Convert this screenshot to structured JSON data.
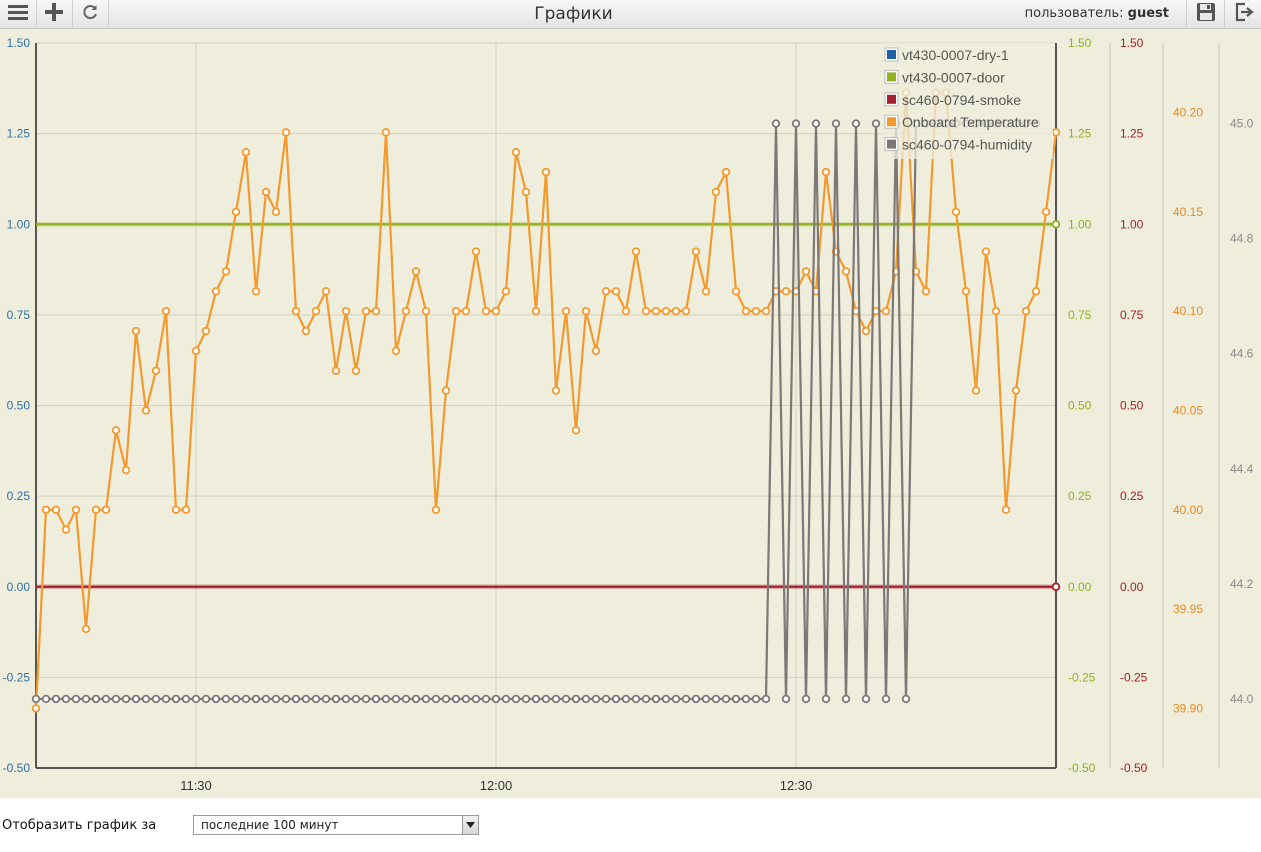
{
  "header": {
    "title": "Графики",
    "user_label": "пользователь:",
    "user_name": "guest"
  },
  "toolbar": {
    "menu_icon": "hamburger-menu-icon",
    "add_icon": "plus-icon",
    "refresh_icon": "refresh-icon",
    "save_icon": "floppy-disk-icon",
    "logout_icon": "logout-icon"
  },
  "period": {
    "label": "Отобразить график за",
    "selected": "последние 100 минут"
  },
  "chart_data": {
    "type": "line",
    "x_ticks": [
      "11:30",
      "12:00",
      "12:30"
    ],
    "axes": [
      {
        "id": "y1",
        "color": "#2f6fa5",
        "side": "left",
        "range": [
          -0.5,
          1.5
        ],
        "ticks": [
          "-0.50",
          "-0.25",
          "0.00",
          "0.25",
          "0.50",
          "0.75",
          "1.00",
          "1.25",
          "1.50"
        ]
      },
      {
        "id": "y2",
        "color": "#8fb021",
        "side": "right",
        "range": [
          -0.5,
          1.5
        ],
        "ticks": [
          "-0.50",
          "-0.25",
          "0.00",
          "0.25",
          "0.50",
          "0.75",
          "1.00",
          "1.25",
          "1.50"
        ]
      },
      {
        "id": "y3",
        "color": "#a4202e",
        "side": "right",
        "range": [
          -0.5,
          1.5
        ],
        "ticks": [
          "-0.50",
          "-0.25",
          "0.00",
          "0.25",
          "0.50",
          "0.75",
          "1.00",
          "1.25",
          "1.50"
        ]
      },
      {
        "id": "y4",
        "color": "#e8891e",
        "side": "right",
        "range": [
          39.87,
          40.235
        ],
        "ticks": [
          "39.90",
          "39.95",
          "40.00",
          "40.05",
          "40.10",
          "40.15",
          "40.20"
        ]
      },
      {
        "id": "y5",
        "color": "#8a8a8a",
        "side": "right",
        "range": [
          43.88,
          45.14
        ],
        "ticks": [
          "44.0",
          "44.2",
          "44.4",
          "44.6",
          "44.8",
          "45.0"
        ]
      }
    ],
    "legend": {
      "position": "top-right"
    },
    "grid": true,
    "series": [
      {
        "name": "vt430-0007-dry-1",
        "color": "#1f5fa6",
        "axis": "y1",
        "points": "none",
        "values": []
      },
      {
        "name": "vt430-0007-door",
        "color": "#8fb021",
        "axis": "y2",
        "points": "ends",
        "values": [
          1,
          1
        ]
      },
      {
        "name": "sc460-0794-smoke",
        "color": "#a4202e",
        "axis": "y3",
        "points": "ends",
        "values": [
          0,
          0
        ]
      },
      {
        "name": "Onboard Temperature",
        "color": "#f39a2f",
        "axis": "y4",
        "points": "all",
        "x_start": 0,
        "values": [
          39.9,
          40.0,
          40.0,
          39.99,
          40.0,
          39.94,
          40.0,
          40.0,
          40.04,
          40.02,
          40.09,
          40.05,
          40.07,
          40.1,
          40.0,
          40.0,
          40.08,
          40.09,
          40.11,
          40.12,
          40.15,
          40.18,
          40.11,
          40.16,
          40.15,
          40.19,
          40.1,
          40.09,
          40.1,
          40.11,
          40.07,
          40.1,
          40.07,
          40.1,
          40.1,
          40.19,
          40.08,
          40.1,
          40.12,
          40.1,
          40.0,
          40.06,
          40.1,
          40.1,
          40.13,
          40.1,
          40.1,
          40.11,
          40.18,
          40.16,
          40.1,
          40.17,
          40.06,
          40.1,
          40.04,
          40.1,
          40.08,
          40.11,
          40.11,
          40.1,
          40.13,
          40.1,
          40.1,
          40.1,
          40.1,
          40.1,
          40.13,
          40.11,
          40.16,
          40.17,
          40.11,
          40.1,
          40.1,
          40.1,
          40.11,
          40.11,
          40.11,
          40.12,
          40.11,
          40.17,
          40.13,
          40.12,
          40.1,
          40.09,
          40.1,
          40.1,
          40.12,
          40.21,
          40.12,
          40.11,
          40.21,
          40.21,
          40.15,
          40.11,
          40.06,
          40.13,
          40.1,
          40.0,
          40.06,
          40.1,
          40.11,
          40.15,
          40.19
        ]
      },
      {
        "name": "sc460-0794-humidity",
        "color": "#7d7776",
        "axis": "y5",
        "points": "all",
        "x_start": 0,
        "values": [
          44.0,
          44.0,
          44.0,
          44.0,
          44.0,
          44.0,
          44.0,
          44.0,
          44.0,
          44.0,
          44.0,
          44.0,
          44.0,
          44.0,
          44.0,
          44.0,
          44.0,
          44.0,
          44.0,
          44.0,
          44.0,
          44.0,
          44.0,
          44.0,
          44.0,
          44.0,
          44.0,
          44.0,
          44.0,
          44.0,
          44.0,
          44.0,
          44.0,
          44.0,
          44.0,
          44.0,
          44.0,
          44.0,
          44.0,
          44.0,
          44.0,
          44.0,
          44.0,
          44.0,
          44.0,
          44.0,
          44.0,
          44.0,
          44.0,
          44.0,
          44.0,
          44.0,
          44.0,
          44.0,
          44.0,
          44.0,
          44.0,
          44.0,
          44.0,
          44.0,
          44.0,
          44.0,
          44.0,
          44.0,
          44.0,
          44.0,
          44.0,
          44.0,
          44.0,
          44.0,
          44.0,
          44.0,
          44.0,
          44.0,
          45.0,
          44.0,
          45.0,
          44.0,
          45.0,
          44.0,
          45.0,
          44.0,
          45.0,
          44.0,
          45.0,
          44.0,
          45.0,
          44.0,
          45.0,
          45.0,
          45.0,
          45.0,
          45.0,
          45.0,
          45.0,
          45.0,
          45.0,
          45.0,
          45.0,
          45.0,
          45.0
        ]
      }
    ]
  }
}
